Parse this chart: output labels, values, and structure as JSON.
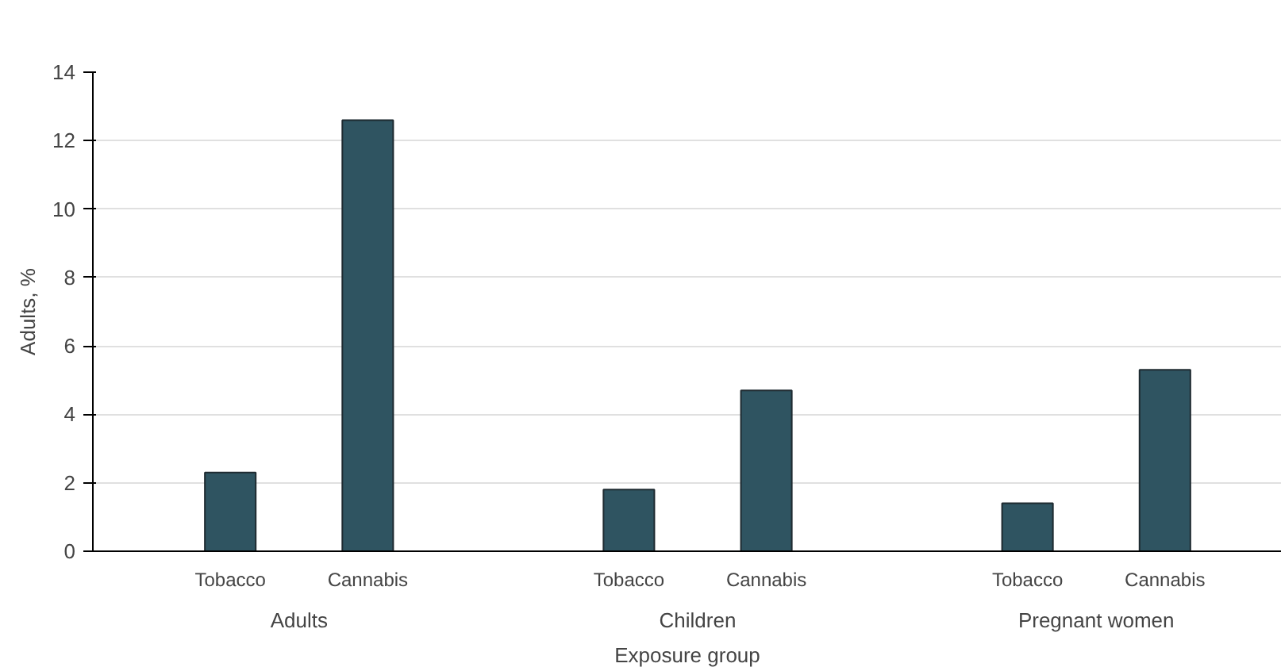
{
  "chart_data": {
    "type": "bar",
    "xlabel": "Exposure group",
    "ylabel": "Adults, %",
    "categories": [
      "Tobacco",
      "Cannabis",
      "Tobacco",
      "Cannabis",
      "Tobacco",
      "Cannabis"
    ],
    "annotations": [
      "Adults",
      "Children",
      "Pregnant women"
    ],
    "values": [
      2.3,
      12.6,
      1.8,
      4.7,
      1.4,
      5.3
    ],
    "color": "#2f5461",
    "ylim": [
      0,
      14
    ],
    "yticks": [
      0,
      2,
      4,
      6,
      8,
      10,
      12,
      14
    ],
    "grid": "y"
  }
}
